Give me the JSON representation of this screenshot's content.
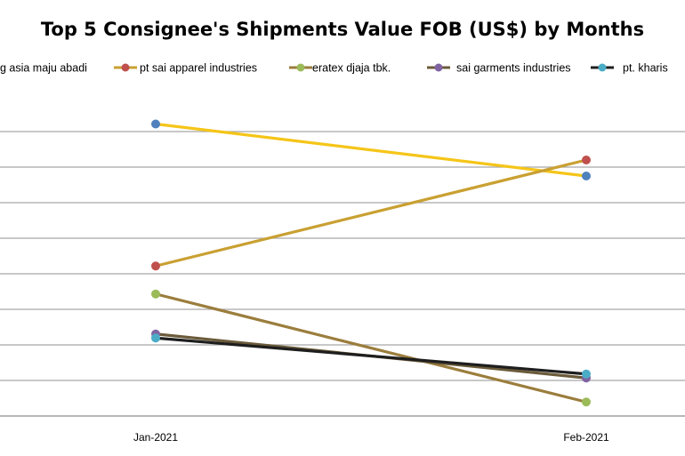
{
  "chart_data": {
    "type": "line",
    "title": "Top 5 Consignee's Shipments Value FOB (US$) by Months",
    "xlabel": "",
    "ylabel": "",
    "categories": [
      "Jan-2021",
      "Feb-2021"
    ],
    "ylim": [
      0,
      8
    ],
    "grid": true,
    "legend_position": "top",
    "series": [
      {
        "name": "ng asia maju abadi",
        "values": [
          7.3,
          6.0
        ],
        "line_color": "#F5C518",
        "marker_color": "#4F81BD"
      },
      {
        "name": "pt sai apparel industries",
        "values": [
          3.75,
          6.4
        ],
        "line_color": "#C9A032",
        "marker_color": "#C0504D"
      },
      {
        "name": "eratex djaja tbk.",
        "values": [
          3.05,
          0.35
        ],
        "line_color": "#9B7D3C",
        "marker_color": "#9BBB59"
      },
      {
        "name": "sai garments industries",
        "values": [
          2.05,
          0.95
        ],
        "line_color": "#6B5B3A",
        "marker_color": "#8064A2"
      },
      {
        "name": "pt. kharis",
        "values": [
          1.95,
          1.05
        ],
        "line_color": "#1E1E1E",
        "marker_color": "#4BACC6"
      }
    ]
  }
}
